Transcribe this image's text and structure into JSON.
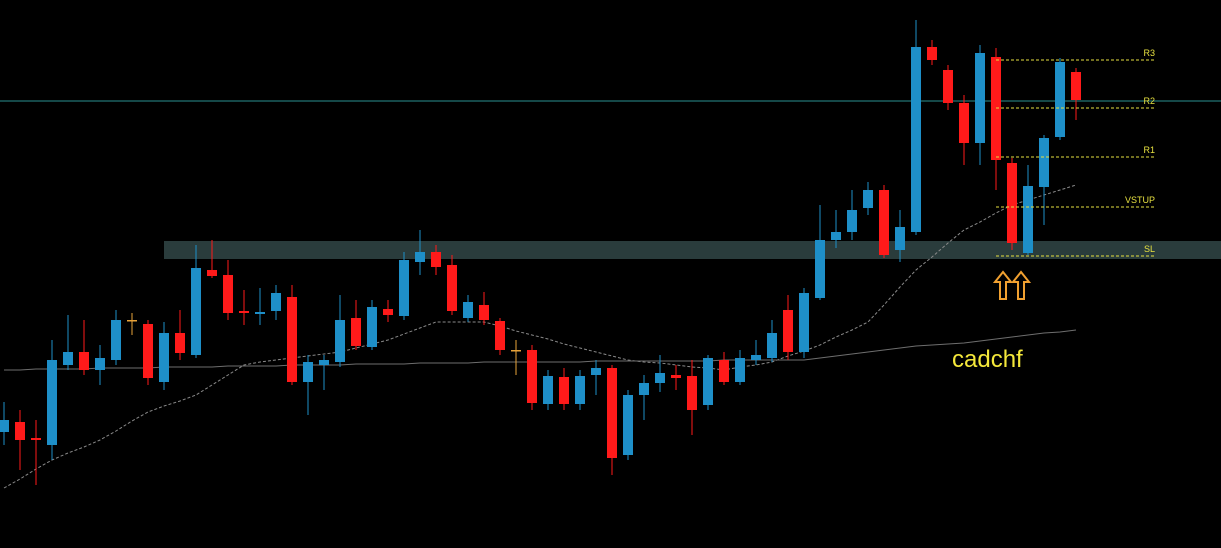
{
  "chart_data": {
    "type": "candlestick",
    "ylim": [
      0,
      548
    ],
    "color_up": "#1e8fc8",
    "color_down": "#ff1a1a",
    "color_flat": "#e8a33a",
    "open": [
      116,
      126,
      110,
      103,
      183,
      196,
      178,
      188,
      228,
      224,
      166,
      215,
      193,
      278,
      273,
      237,
      234,
      237,
      251,
      166,
      183,
      186,
      230,
      201,
      239,
      232,
      286,
      296,
      283,
      230,
      243,
      227,
      198,
      198,
      144,
      171,
      144,
      173,
      180,
      93,
      153,
      165,
      173,
      172,
      143,
      188,
      166,
      188,
      190,
      238,
      196,
      250,
      308,
      316,
      340,
      358,
      298,
      316,
      501,
      478,
      445,
      405,
      491,
      385,
      295,
      361,
      411,
      476
    ],
    "high": [
      146,
      138,
      128,
      208,
      233,
      228,
      203,
      238,
      235,
      228,
      226,
      238,
      303,
      308,
      288,
      258,
      260,
      263,
      263,
      193,
      193,
      253,
      248,
      248,
      248,
      296,
      318,
      303,
      293,
      253,
      256,
      230,
      208,
      203,
      178,
      180,
      178,
      188,
      183,
      158,
      173,
      193,
      183,
      188,
      193,
      196,
      198,
      208,
      228,
      253,
      260,
      343,
      338,
      358,
      366,
      363,
      338,
      528,
      508,
      483,
      453,
      503,
      500,
      390,
      383,
      413,
      490,
      480
    ],
    "low": [
      103,
      78,
      63,
      88,
      178,
      173,
      163,
      183,
      213,
      163,
      158,
      188,
      190,
      270,
      228,
      223,
      223,
      228,
      163,
      133,
      158,
      181,
      198,
      198,
      226,
      228,
      273,
      273,
      233,
      226,
      223,
      193,
      173,
      138,
      138,
      138,
      138,
      153,
      73,
      88,
      128,
      156,
      158,
      113,
      138,
      163,
      163,
      183,
      186,
      188,
      190,
      248,
      300,
      308,
      333,
      290,
      286,
      313,
      483,
      438,
      383,
      383,
      358,
      298,
      293,
      323,
      408,
      428
    ],
    "close": [
      128,
      108,
      108,
      188,
      196,
      178,
      190,
      228,
      228,
      170,
      215,
      195,
      280,
      272,
      235,
      235,
      236,
      255,
      166,
      186,
      188,
      228,
      202,
      241,
      233,
      288,
      296,
      281,
      237,
      246,
      228,
      198,
      198,
      145,
      172,
      144,
      172,
      180,
      90,
      153,
      165,
      175,
      170,
      138,
      190,
      166,
      190,
      193,
      215,
      196,
      255,
      308,
      316,
      338,
      358,
      293,
      321,
      501,
      488,
      445,
      405,
      495,
      388,
      305,
      362,
      410,
      486,
      448
    ],
    "moving_averages": [
      {
        "color": "#8a8a8a",
        "dashed": true,
        "values": [
          60,
          69,
          79,
          88,
          95,
          101,
          108,
          117,
          127,
          136,
          142,
          147,
          153,
          163,
          173,
          183,
          186,
          188,
          190,
          192,
          194,
          196,
          200,
          204,
          208,
          214,
          220,
          226,
          226,
          226,
          226,
          222,
          217,
          213,
          209,
          204,
          200,
          196,
          192,
          188,
          186,
          185,
          183,
          181,
          180,
          178,
          181,
          183,
          186,
          192,
          197,
          203,
          211,
          218,
          226,
          243,
          261,
          278,
          291,
          305,
          318,
          326,
          335,
          343,
          348,
          353,
          358,
          363
        ]
      },
      {
        "color": "#6e6e6e",
        "dashed": false,
        "values": [
          178,
          178,
          179,
          179,
          179,
          179,
          180,
          180,
          180,
          180,
          181,
          181,
          181,
          181,
          182,
          182,
          182,
          182,
          183,
          183,
          183,
          183,
          184,
          184,
          184,
          184,
          185,
          185,
          185,
          185,
          186,
          186,
          186,
          186,
          186,
          186,
          186,
          187,
          187,
          187,
          187,
          187,
          187,
          187,
          187,
          188,
          188,
          188,
          188,
          188,
          188,
          190,
          192,
          194,
          196,
          198,
          200,
          202,
          203,
          204,
          205,
          207,
          209,
          211,
          213,
          215,
          216,
          218
        ]
      }
    ],
    "zone": [
      289,
      307
    ],
    "zone_color": "#2a3c3c",
    "hline": 447,
    "hline_color": "#2a9090",
    "level_color": "#e6e040",
    "levels": [
      {
        "label": "R3",
        "value": 488
      },
      {
        "label": "R2",
        "value": 440
      },
      {
        "label": "R1",
        "value": 391
      },
      {
        "label": "VSTUP",
        "value": 341
      },
      {
        "label": "SL",
        "value": 292
      }
    ],
    "annotation": "cadchf"
  }
}
